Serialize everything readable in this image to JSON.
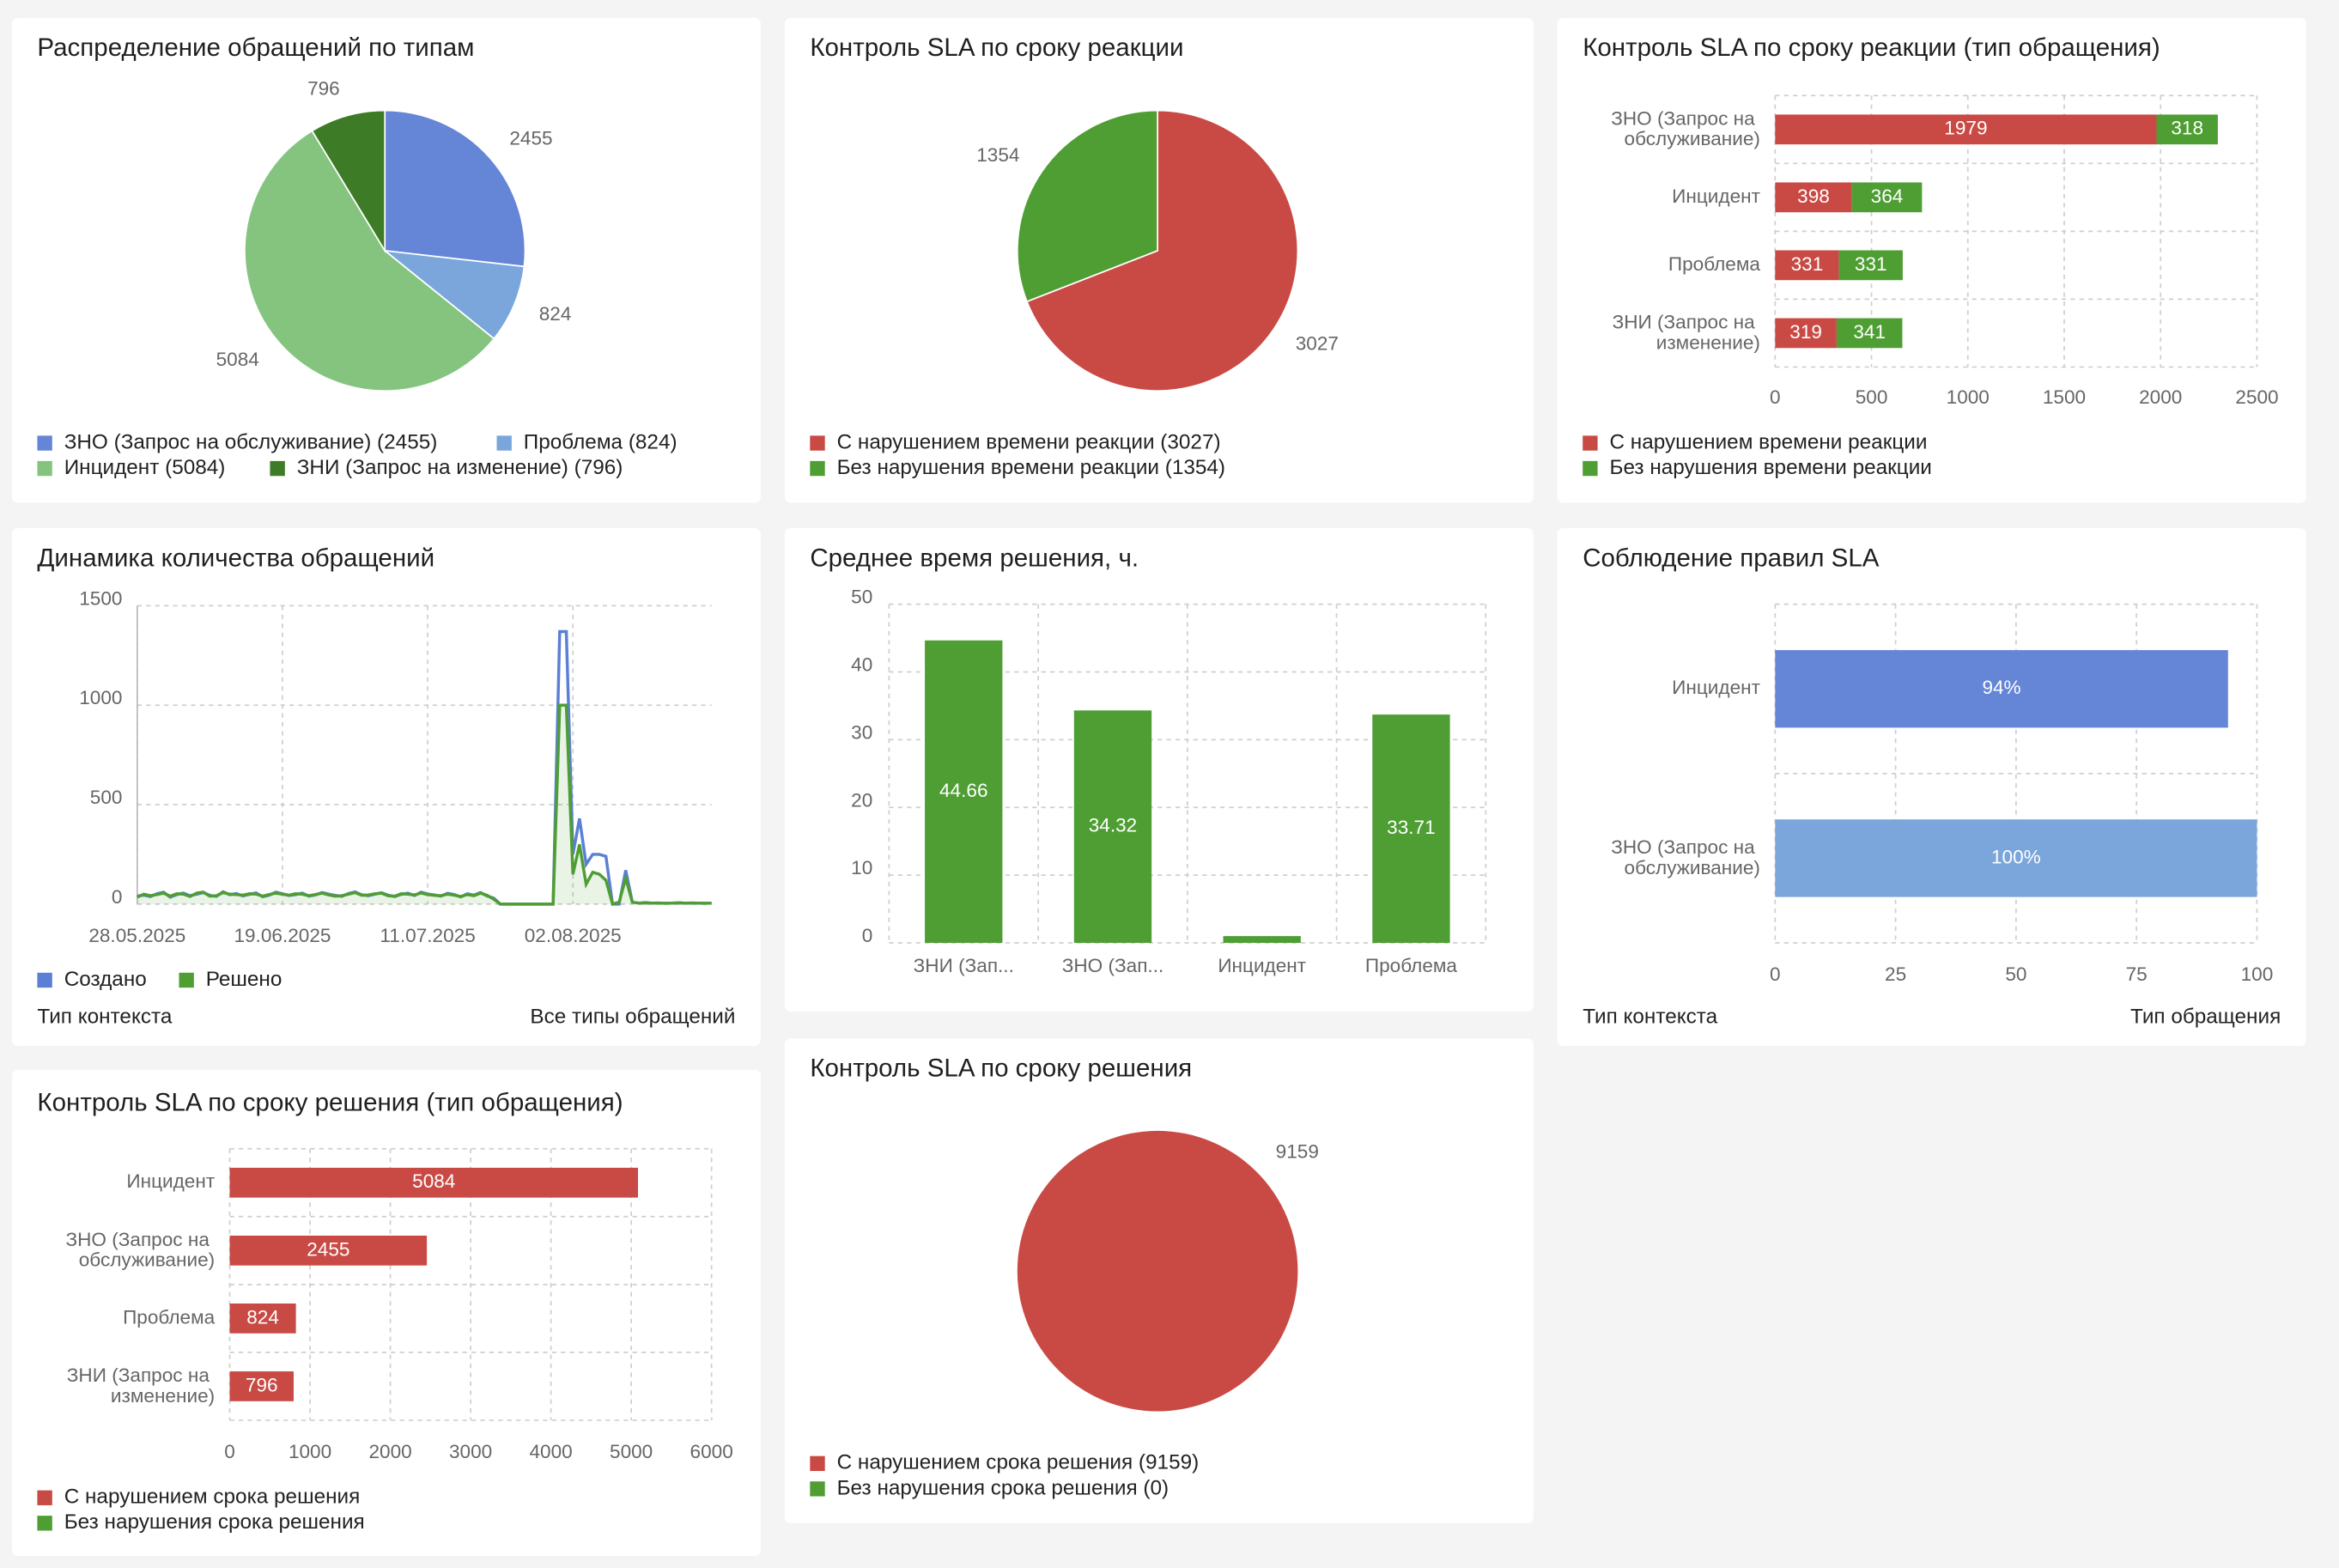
{
  "chart_data": [
    {
      "type": "pie",
      "title": "Распределение обращений по типам",
      "labels": [
        "ЗНО (Запрос на обслуживание) (2455)",
        "Проблема (824)",
        "Инцидент (5084)",
        "ЗНИ (Запрос на изменение) (796)"
      ],
      "values": [
        2455,
        824,
        5084,
        796
      ],
      "colors": [
        "#6585d6",
        "#7aa6dc",
        "#85c47f",
        "#3e7b27"
      ]
    },
    {
      "type": "pie",
      "title": "Контроль SLA по сроку реакции",
      "labels": [
        "С нарушением времени реакции (3027)",
        "Без нарушения времени реакции (1354)"
      ],
      "values": [
        3027,
        1354
      ],
      "colors": [
        "#c94a44",
        "#4e9e33"
      ]
    },
    {
      "type": "bar",
      "horizontal": true,
      "stacked": true,
      "title": "Контроль SLA по сроку реакции (тип обращения)",
      "categories": [
        "ЗНО (Запрос на обслуживание)",
        "Инцидент",
        "Проблема",
        "ЗНИ (Запрос на изменение)"
      ],
      "series": [
        {
          "name": "С нарушением времени реакции",
          "color": "#c94a44",
          "values": [
            1979,
            398,
            331,
            319
          ]
        },
        {
          "name": "Без нарушения времени реакции",
          "color": "#4e9e33",
          "values": [
            318,
            364,
            331,
            341
          ]
        }
      ],
      "xlim": [
        0,
        2500
      ],
      "xticks": [
        0,
        500,
        1000,
        1500,
        2000,
        2500
      ],
      "grid": true
    },
    {
      "type": "line",
      "title": "Динамика количества обращений",
      "x": [
        "28.05.2025",
        "29.05.2025",
        "30.05.2025",
        "31.05.2025",
        "01.06.2025",
        "02.06.2025",
        "03.06.2025",
        "04.06.2025",
        "05.06.2025",
        "06.06.2025",
        "07.06.2025",
        "08.06.2025",
        "09.06.2025",
        "10.06.2025",
        "11.06.2025",
        "12.06.2025",
        "13.06.2025",
        "14.06.2025",
        "15.06.2025",
        "16.06.2025",
        "17.06.2025",
        "18.06.2025",
        "19.06.2025",
        "20.06.2025",
        "21.06.2025",
        "22.06.2025",
        "23.06.2025",
        "24.06.2025",
        "25.06.2025",
        "26.06.2025",
        "27.06.2025",
        "28.06.2025",
        "29.06.2025",
        "30.06.2025",
        "01.07.2025",
        "02.07.2025",
        "03.07.2025",
        "04.07.2025",
        "05.07.2025",
        "06.07.2025",
        "07.07.2025",
        "08.07.2025",
        "09.07.2025",
        "10.07.2025",
        "11.07.2025",
        "12.07.2025",
        "13.07.2025",
        "14.07.2025",
        "15.07.2025",
        "16.07.2025",
        "17.07.2025",
        "18.07.2025",
        "19.07.2025",
        "20.07.2025",
        "21.07.2025",
        "22.07.2025",
        "23.07.2025",
        "24.07.2025",
        "25.07.2025",
        "26.07.2025",
        "27.07.2025",
        "28.07.2025",
        "29.07.2025",
        "30.07.2025",
        "31.07.2025",
        "01.08.2025",
        "02.08.2025",
        "03.08.2025",
        "04.08.2025",
        "05.08.2025",
        "06.08.2025",
        "07.08.2025",
        "08.08.2025",
        "09.08.2025",
        "10.08.2025",
        "11.08.2025",
        "12.08.2025",
        "13.08.2025",
        "14.08.2025",
        "15.08.2025",
        "16.08.2025",
        "17.08.2025",
        "18.08.2025",
        "19.08.2025",
        "20.08.2025",
        "21.08.2025",
        "22.08.2025",
        "23.08.2025"
      ],
      "series": [
        {
          "name": "Создано",
          "color": "#5b7fd4",
          "values": [
            40,
            45,
            38,
            52,
            60,
            35,
            48,
            55,
            42,
            50,
            58,
            44,
            39,
            62,
            47,
            53,
            41,
            49,
            56,
            37,
            45,
            60,
            52,
            43,
            48,
            55,
            40,
            46,
            58,
            50,
            44,
            39,
            53,
            61,
            47,
            42,
            50,
            57,
            45,
            38,
            49,
            55,
            43,
            60,
            51,
            46,
            40,
            54,
            48,
            36,
            52,
            45,
            58,
            41,
            30,
            0,
            0,
            0,
            0,
            0,
            0,
            0,
            0,
            0,
            1370,
            1370,
            250,
            430,
            200,
            250,
            250,
            240,
            0,
            0,
            170,
            10,
            5,
            8,
            5,
            6,
            4,
            5,
            7,
            5,
            6,
            5,
            4,
            5
          ]
        },
        {
          "name": "Решено",
          "color": "#4e9e33",
          "values": [
            35,
            50,
            42,
            48,
            55,
            40,
            52,
            50,
            38,
            55,
            60,
            40,
            42,
            58,
            50,
            48,
            45,
            52,
            50,
            40,
            48,
            55,
            50,
            45,
            52,
            50,
            42,
            48,
            55,
            46,
            40,
            42,
            50,
            58,
            44,
            46,
            52,
            55,
            42,
            40,
            52,
            50,
            46,
            56,
            48,
            44,
            42,
            50,
            45,
            38,
            48,
            42,
            55,
            44,
            25,
            0,
            0,
            0,
            0,
            0,
            0,
            0,
            0,
            0,
            1000,
            1000,
            150,
            300,
            100,
            160,
            150,
            120,
            0,
            10,
            130,
            10,
            5,
            6,
            5,
            5,
            4,
            5,
            6,
            5,
            5,
            5,
            4,
            5
          ]
        }
      ],
      "xticks": [
        "28.05.2025",
        "19.06.2025",
        "11.07.2025",
        "02.08.2025"
      ],
      "ylim": [
        0,
        1500
      ],
      "yticks": [
        0,
        500,
        1000,
        1500
      ],
      "grid": true,
      "footer": [
        "Тип контекста",
        "Все типы обращений"
      ]
    },
    {
      "type": "bar",
      "title": "Среднее время решения, ч.",
      "categories": [
        "ЗНИ (Зап...",
        "ЗНО (Зап...",
        "Инцидент",
        "Проблема"
      ],
      "values": [
        44.66,
        34.32,
        1,
        33.71
      ],
      "color": "#4e9e33",
      "ylim": [
        0,
        50
      ],
      "yticks": [
        0,
        10,
        20,
        30,
        40,
        50
      ],
      "grid": true
    },
    {
      "type": "bar",
      "horizontal": true,
      "title": "Соблюдение правил SLA",
      "categories": [
        "Инцидент",
        "ЗНО (Запрос на обслуживание)"
      ],
      "values": [
        94,
        100
      ],
      "value_labels": [
        "94%",
        "100%"
      ],
      "colors": [
        "#6585d6",
        "#7aa6dc"
      ],
      "xlim": [
        0,
        100
      ],
      "xticks": [
        0,
        25,
        50,
        75,
        100
      ],
      "grid": true,
      "footer": [
        "Тип контекста",
        "Тип обращения"
      ]
    },
    {
      "type": "bar",
      "horizontal": true,
      "stacked": true,
      "title": "Контроль SLA по сроку решения (тип обращения)",
      "categories": [
        "Инцидент",
        "ЗНО (Запрос на обслуживание)",
        "Проблема",
        "ЗНИ (Запрос на изменение)"
      ],
      "series": [
        {
          "name": "С нарушением срока решения",
          "color": "#c94a44",
          "values": [
            5084,
            2455,
            824,
            796
          ]
        },
        {
          "name": "Без нарушения срока решения",
          "color": "#4e9e33",
          "values": [
            0,
            0,
            0,
            0
          ]
        }
      ],
      "xlim": [
        0,
        6000
      ],
      "xticks": [
        0,
        1000,
        2000,
        3000,
        4000,
        5000,
        6000
      ],
      "grid": true
    },
    {
      "type": "pie",
      "title": "Контроль SLA по сроку решения",
      "labels": [
        "С нарушением срока решения (9159)",
        "Без нарушения срока решения (0)"
      ],
      "values": [
        9159,
        0
      ],
      "colors": [
        "#c94a44",
        "#4e9e33"
      ]
    }
  ]
}
